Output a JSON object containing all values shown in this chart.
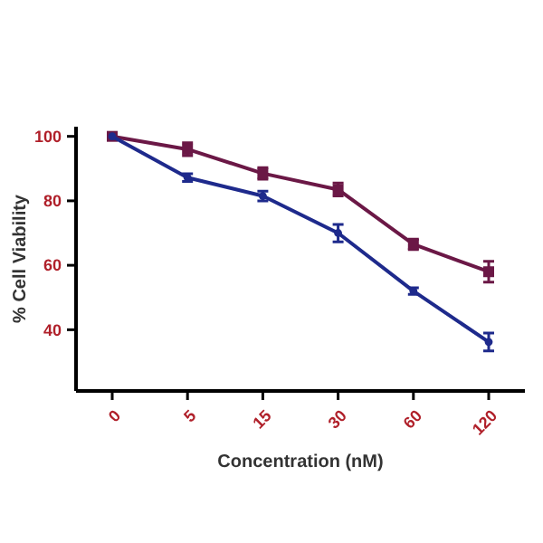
{
  "chart_data": {
    "type": "line",
    "xlabel": "Concentration (nM)",
    "ylabel": "% Cell Viability",
    "categories": [
      "0",
      "5",
      "15",
      "30",
      "60",
      "120"
    ],
    "ylim": [
      21,
      103
    ],
    "yticks": [
      40,
      60,
      80,
      100
    ],
    "grid": false,
    "series": [
      {
        "color": "#6b1846",
        "marker": "square",
        "values": [
          100,
          96,
          88.5,
          83.5,
          66.5,
          58
        ],
        "errors": [
          null,
          2,
          1.8,
          2,
          1.6,
          3.2
        ]
      },
      {
        "color": "#1e2a8c",
        "marker": "circle",
        "values": [
          100,
          87.2,
          81.5,
          70,
          52,
          36.2
        ],
        "errors": [
          null,
          1.2,
          1.5,
          2.7,
          1,
          2.8
        ]
      }
    ]
  }
}
